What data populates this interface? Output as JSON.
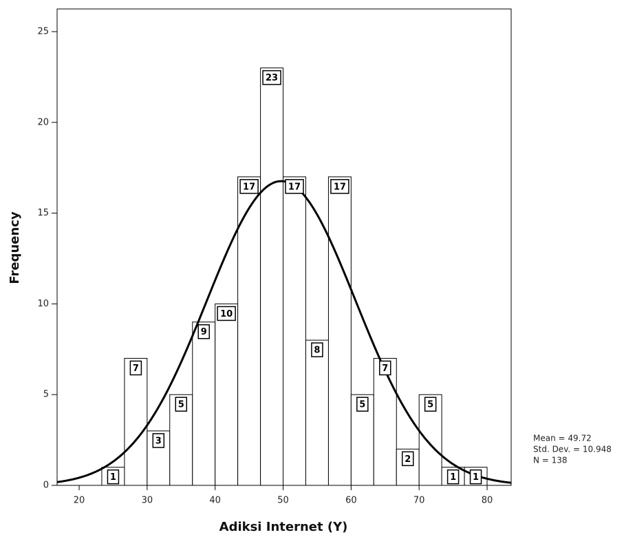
{
  "chart_data": {
    "type": "histogram",
    "xlabel": "Adiksi Internet (Y)",
    "ylabel": "Frequency",
    "bins": [
      23.33,
      26.67,
      30,
      33.33,
      36.67,
      40,
      43.33,
      46.67,
      50,
      53.33,
      56.67,
      60,
      63.33,
      66.67,
      70,
      73.33,
      76.67,
      80
    ],
    "values": [
      1,
      7,
      3,
      5,
      9,
      10,
      17,
      23,
      17,
      8,
      17,
      5,
      7,
      2,
      5,
      1,
      1
    ],
    "color": "#ffffff",
    "xlim": [
      16.76,
      83.54
    ],
    "ylim": [
      0,
      26.25
    ],
    "xticks": [
      20,
      30,
      40,
      50,
      60,
      70,
      80
    ],
    "yticks": [
      0,
      5,
      10,
      15,
      20,
      25
    ],
    "grid": false,
    "normal_curve": true,
    "stats": [
      {
        "value": 49.72,
        "label": "Mean = 49.72"
      },
      {
        "value": 10.948,
        "label": "Std. Dev. = 10.948"
      },
      {
        "value": 138,
        "label": "N = 138"
      }
    ]
  }
}
